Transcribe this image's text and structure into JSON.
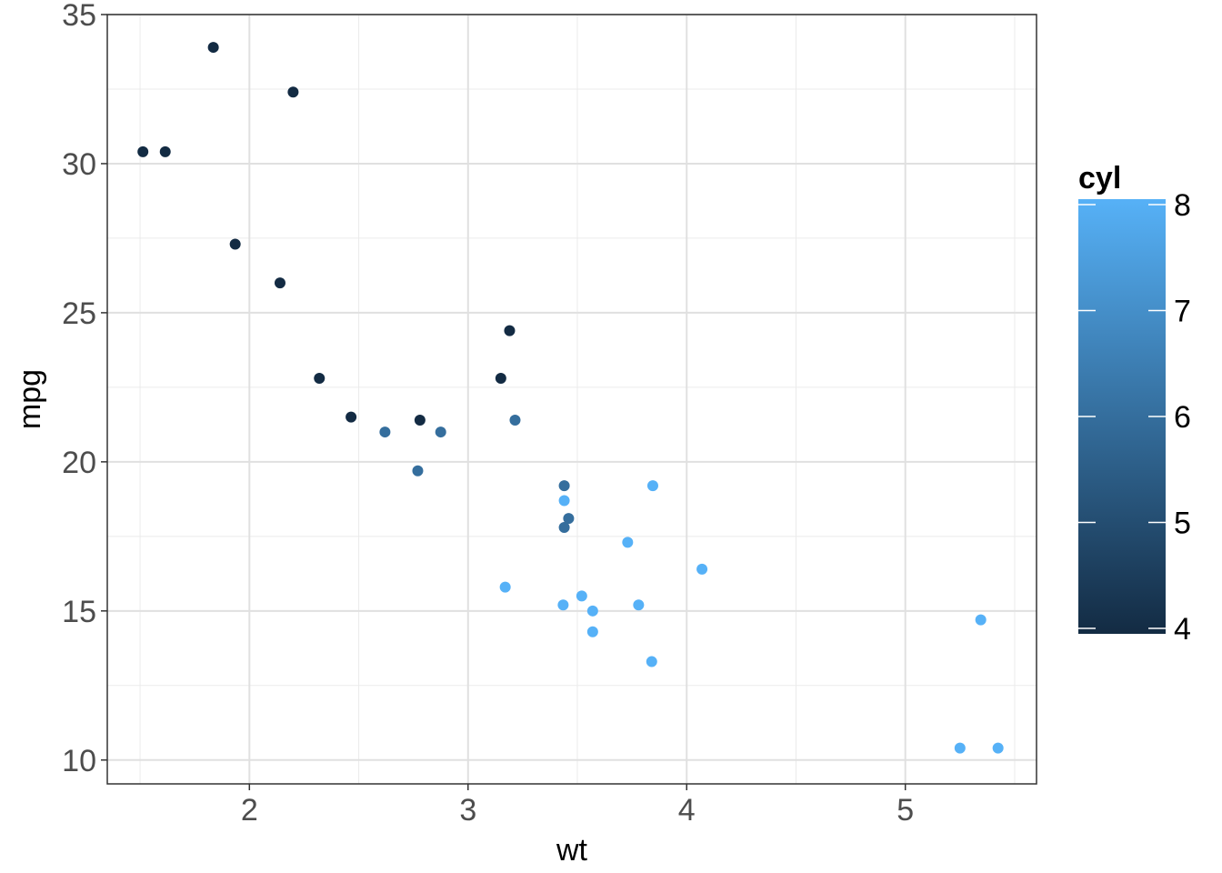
{
  "chart_data": {
    "type": "scatter",
    "title": "",
    "xlabel": "wt",
    "ylabel": "mpg",
    "xlim": [
      1.35,
      5.6
    ],
    "ylim": [
      9.2,
      35.0
    ],
    "x_ticks": [
      2,
      3,
      4,
      5
    ],
    "x_tick_labels": [
      "2",
      "3",
      "4",
      "5"
    ],
    "y_ticks": [
      10,
      15,
      20,
      25,
      30,
      35
    ],
    "y_tick_labels": [
      "10",
      "15",
      "20",
      "25",
      "30",
      "35"
    ],
    "grid": true,
    "color_variable": "cyl",
    "legend": {
      "title": "cyl",
      "type": "colorbar",
      "placement": "right",
      "min": 4,
      "max": 8,
      "ticks": [
        4,
        5,
        6,
        7,
        8
      ],
      "tick_labels": [
        "4",
        "5",
        "6",
        "7",
        "8"
      ],
      "low_color": "#132B43",
      "high_color": "#56B1F7"
    },
    "points": [
      {
        "x": 1.513,
        "y": 30.4,
        "cyl": 4
      },
      {
        "x": 1.615,
        "y": 30.4,
        "cyl": 4
      },
      {
        "x": 1.835,
        "y": 33.9,
        "cyl": 4
      },
      {
        "x": 1.935,
        "y": 27.3,
        "cyl": 4
      },
      {
        "x": 2.14,
        "y": 26.0,
        "cyl": 4
      },
      {
        "x": 2.2,
        "y": 32.4,
        "cyl": 4
      },
      {
        "x": 2.32,
        "y": 22.8,
        "cyl": 4
      },
      {
        "x": 2.465,
        "y": 21.5,
        "cyl": 4
      },
      {
        "x": 2.62,
        "y": 21.0,
        "cyl": 6
      },
      {
        "x": 2.77,
        "y": 19.7,
        "cyl": 6
      },
      {
        "x": 2.78,
        "y": 21.4,
        "cyl": 4
      },
      {
        "x": 2.875,
        "y": 21.0,
        "cyl": 6
      },
      {
        "x": 3.15,
        "y": 22.8,
        "cyl": 4
      },
      {
        "x": 3.17,
        "y": 15.8,
        "cyl": 8
      },
      {
        "x": 3.19,
        "y": 24.4,
        "cyl": 4
      },
      {
        "x": 3.215,
        "y": 21.4,
        "cyl": 6
      },
      {
        "x": 3.435,
        "y": 15.2,
        "cyl": 8
      },
      {
        "x": 3.44,
        "y": 18.7,
        "cyl": 8
      },
      {
        "x": 3.44,
        "y": 19.2,
        "cyl": 6
      },
      {
        "x": 3.44,
        "y": 17.8,
        "cyl": 6
      },
      {
        "x": 3.46,
        "y": 18.1,
        "cyl": 6
      },
      {
        "x": 3.52,
        "y": 15.5,
        "cyl": 8
      },
      {
        "x": 3.57,
        "y": 14.3,
        "cyl": 8
      },
      {
        "x": 3.57,
        "y": 15.0,
        "cyl": 8
      },
      {
        "x": 3.73,
        "y": 17.3,
        "cyl": 8
      },
      {
        "x": 3.78,
        "y": 15.2,
        "cyl": 8
      },
      {
        "x": 3.84,
        "y": 13.3,
        "cyl": 8
      },
      {
        "x": 3.845,
        "y": 19.2,
        "cyl": 8
      },
      {
        "x": 4.07,
        "y": 16.4,
        "cyl": 8
      },
      {
        "x": 5.25,
        "y": 10.4,
        "cyl": 8
      },
      {
        "x": 5.345,
        "y": 14.7,
        "cyl": 8
      },
      {
        "x": 5.424,
        "y": 10.4,
        "cyl": 8
      }
    ]
  }
}
